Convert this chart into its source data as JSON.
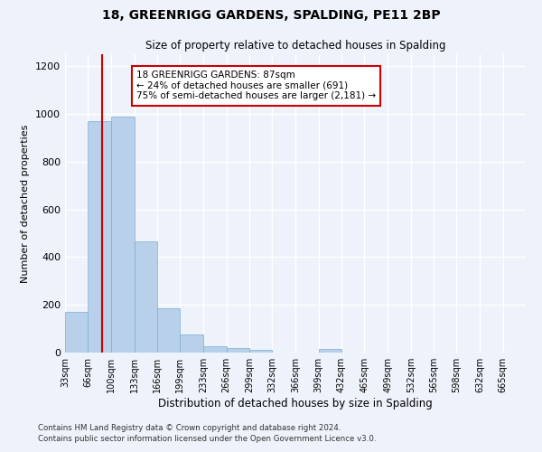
{
  "title1": "18, GREENRIGG GARDENS, SPALDING, PE11 2BP",
  "title2": "Size of property relative to detached houses in Spalding",
  "xlabel": "Distribution of detached houses by size in Spalding",
  "ylabel": "Number of detached properties",
  "footnote1": "Contains HM Land Registry data © Crown copyright and database right 2024.",
  "footnote2": "Contains public sector information licensed under the Open Government Licence v3.0.",
  "bin_edges": [
    33,
    66,
    100,
    133,
    166,
    199,
    233,
    266,
    299,
    332,
    366,
    399,
    432,
    465,
    499,
    532,
    565,
    598,
    632,
    665,
    698
  ],
  "bar_heights": [
    170,
    970,
    990,
    465,
    185,
    75,
    28,
    18,
    10,
    0,
    0,
    15,
    0,
    0,
    0,
    0,
    0,
    0,
    0,
    0
  ],
  "bar_color": "#b8d0ea",
  "bar_edge_color": "#7aaed4",
  "property_size": 87,
  "red_line_color": "#cc0000",
  "annotation_text": "18 GREENRIGG GARDENS: 87sqm\n← 24% of detached houses are smaller (691)\n75% of semi-detached houses are larger (2,181) →",
  "annotation_box_color": "#cc0000",
  "ylim": [
    0,
    1250
  ],
  "yticks": [
    0,
    200,
    400,
    600,
    800,
    1000,
    1200
  ],
  "bg_color": "#eef2fa",
  "grid_color": "#ffffff"
}
